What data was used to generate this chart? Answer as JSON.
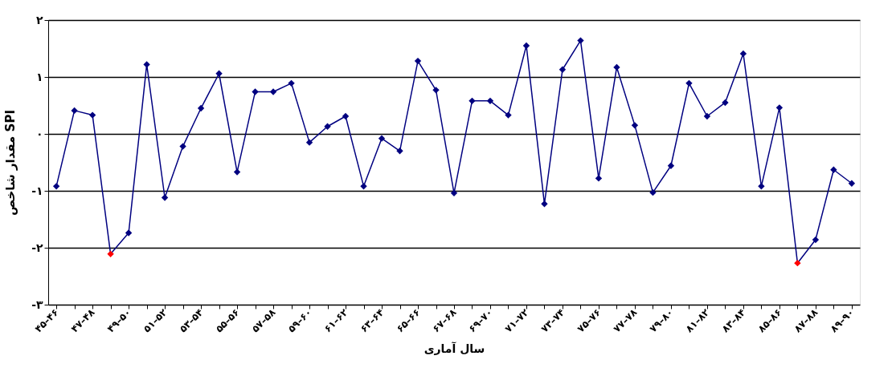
{
  "chart_data": {
    "type": "line",
    "xlabel": "سال آماری",
    "ylabel": "مقدار شاخص SPI",
    "categories": [
      "۴۵–۴۶",
      null,
      "۴۷–۴۸",
      null,
      "۴۹–۵۰",
      null,
      "۵۱–۵۲",
      null,
      "۵۳–۵۴",
      null,
      "۵۵–۵۶",
      null,
      "۵۷–۵۸",
      null,
      "۵۹–۶۰",
      null,
      "۶۱–۶۲",
      null,
      "۶۳–۶۴",
      null,
      "۶۵–۶۶",
      null,
      "۶۷–۶۸",
      null,
      "۶۹–۷۰",
      null,
      "۷۱–۷۲",
      null,
      "۷۳–۷۴",
      null,
      "۷۵–۷۶",
      null,
      "۷۷–۷۸",
      null,
      "۷۹–۸۰",
      null,
      "۸۱–۸۲",
      null,
      "۸۳–۸۴",
      null,
      "۸۵–۸۶",
      null,
      "۸۷–۸۸",
      null,
      "۸۹–۹۰"
    ],
    "series": [
      {
        "color": "#000080",
        "values": [
          -0.92,
          0.41,
          0.33,
          -2.11,
          -1.74,
          1.22,
          -1.12,
          -0.22,
          0.45,
          1.06,
          -0.67,
          0.74,
          0.74,
          0.89,
          -0.15,
          0.13,
          0.31,
          -0.92,
          -0.08,
          -0.3,
          1.28,
          0.77,
          -1.04,
          0.58,
          0.58,
          0.33,
          1.55,
          -1.23,
          1.13,
          1.64,
          -0.78,
          1.17,
          0.15,
          -1.03,
          -0.56,
          0.89,
          0.31,
          0.55,
          1.41,
          -0.92,
          0.46,
          -2.27,
          -1.86,
          -0.63,
          -0.87
        ],
        "colors": [
          "#000080",
          "#000080",
          "#000080",
          "#ff0000",
          "#000080",
          "#000080",
          "#000080",
          "#000080",
          "#000080",
          "#000080",
          "#000080",
          "#000080",
          "#000080",
          "#000080",
          "#000080",
          "#000080",
          "#000080",
          "#000080",
          "#000080",
          "#000080",
          "#000080",
          "#000080",
          "#000080",
          "#000080",
          "#000080",
          "#000080",
          "#000080",
          "#000080",
          "#000080",
          "#000080",
          "#000080",
          "#000080",
          "#000080",
          "#000080",
          "#000080",
          "#000080",
          "#000080",
          "#000080",
          "#000080",
          "#000080",
          "#000080",
          "#ff0000",
          "#000080",
          "#000080",
          "#000080"
        ]
      }
    ],
    "ylim": [
      -3,
      2
    ],
    "yticks": [
      {
        "value": 2,
        "label": "۲"
      },
      {
        "value": 1,
        "label": "۱"
      },
      {
        "value": 0,
        "label": "۰"
      },
      {
        "value": -1,
        "label": "-۱"
      },
      {
        "value": -2,
        "label": "-۲"
      },
      {
        "value": -3,
        "label": "-۳"
      }
    ],
    "grid": "y",
    "marker": "diamond",
    "line_style": "solid",
    "legend": false
  }
}
